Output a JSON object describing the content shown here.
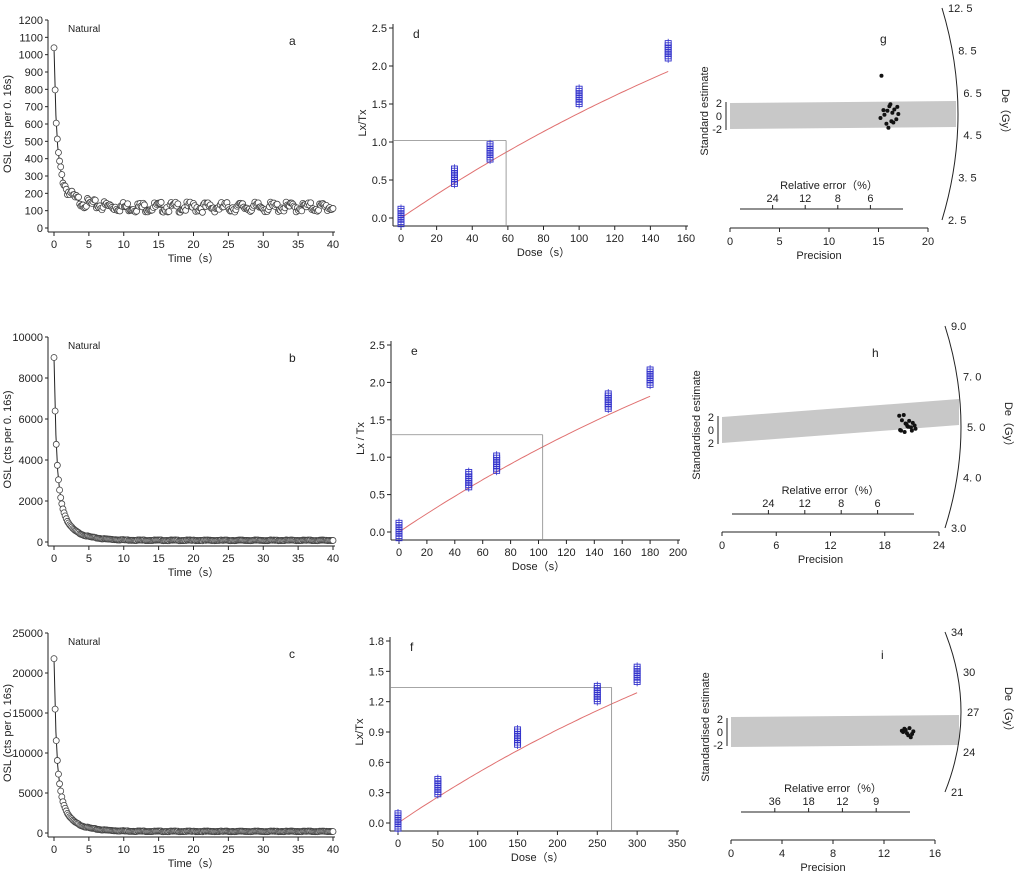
{
  "figure": {
    "rows": [
      {
        "osl": {
          "letter": "a",
          "label": "Natural",
          "xlabel": "Time（s）",
          "ylabel": "OSL (cts per 0. 16s)",
          "xlim": [
            0,
            40
          ],
          "ylim": [
            0,
            1200
          ],
          "xticks": [
            "0",
            "5",
            "10",
            "15",
            "20",
            "25",
            "30",
            "35",
            "40"
          ],
          "yticks": [
            "0",
            "100",
            "200",
            "300",
            "400",
            "500",
            "600",
            "700",
            "800",
            "900",
            "1000",
            "1100",
            "1200"
          ],
          "ytick_values": [
            0,
            100,
            200,
            300,
            400,
            500,
            600,
            700,
            800,
            900,
            1000,
            1100,
            1200
          ],
          "peak": 1040,
          "tail": 120
        },
        "growth": {
          "letter": "d",
          "xlabel": "Dose（s）",
          "ylabel": "Lx/Tx",
          "xlim": [
            0,
            160
          ],
          "ylim": [
            0,
            2.5
          ],
          "xticks": [
            "0",
            "20",
            "40",
            "60",
            "80",
            "100",
            "120",
            "140",
            "160"
          ],
          "xtick_values": [
            0,
            20,
            40,
            60,
            80,
            100,
            120,
            140,
            160
          ],
          "yticks": [
            "0.0",
            "0.5",
            "1.0",
            "1.5",
            "2.0",
            "2.5"
          ],
          "ytick_values": [
            0,
            0.5,
            1.0,
            1.5,
            2.0,
            2.5
          ],
          "points": [
            [
              0,
              0.02
            ],
            [
              30,
              0.55
            ],
            [
              50,
              0.87
            ],
            [
              100,
              1.6
            ],
            [
              150,
              2.2
            ]
          ],
          "natural": [
            59,
            1.02
          ]
        },
        "radial": {
          "letter": "g",
          "ylabel": "Standard estimate",
          "rel_error_label": "Relative error（%）",
          "rel_error_ticks": [
            "24",
            "12",
            "8",
            "6"
          ],
          "precision_label": "Precision",
          "precision_ticks": [
            "0",
            "5",
            "10",
            "15",
            "20"
          ],
          "precision_values": [
            0,
            5,
            10,
            15,
            20
          ],
          "precision_max": 20,
          "std_ticks": [
            "2",
            "0",
            "-2"
          ],
          "de_label": "De（Gy）",
          "de_ticks": [
            "12. 5",
            "8. 5",
            "6. 5",
            "4. 5",
            "3. 5",
            "2. 5"
          ]
        }
      },
      {
        "osl": {
          "letter": "b",
          "label": "Natural",
          "xlabel": "Time（s）",
          "ylabel": "OSL (cts per 0. 16s)",
          "xlim": [
            0,
            40
          ],
          "ylim": [
            0,
            10000
          ],
          "xticks": [
            "0",
            "5",
            "10",
            "15",
            "20",
            "25",
            "30",
            "35",
            "40"
          ],
          "yticks": [
            "0",
            "2000",
            "4000",
            "6000",
            "8000",
            "10000"
          ],
          "ytick_values": [
            0,
            2000,
            4000,
            6000,
            8000,
            10000
          ],
          "peak": 9000,
          "tail": 80
        },
        "growth": {
          "letter": "e",
          "xlabel": "Dose（s）",
          "ylabel": "Lx / Tx",
          "xlim": [
            0,
            200
          ],
          "ylim": [
            0,
            2.5
          ],
          "xticks": [
            "0",
            "20",
            "40",
            "60",
            "80",
            "100",
            "120",
            "140",
            "160",
            "180",
            "200"
          ],
          "xtick_values": [
            0,
            20,
            40,
            60,
            80,
            100,
            120,
            140,
            160,
            180,
            200
          ],
          "yticks": [
            "0.0",
            "0.5",
            "1.0",
            "1.5",
            "2.0",
            "2.5"
          ],
          "ytick_values": [
            0,
            0.5,
            1.0,
            1.5,
            2.0,
            2.5
          ],
          "points": [
            [
              0,
              0.02
            ],
            [
              50,
              0.7
            ],
            [
              70,
              0.92
            ],
            [
              150,
              1.75
            ],
            [
              180,
              2.07
            ]
          ],
          "natural": [
            103,
            1.3
          ]
        },
        "radial": {
          "letter": "h",
          "ylabel": "Standardised estimate",
          "rel_error_label": "Relative error（%）",
          "rel_error_ticks": [
            "24",
            "12",
            "8",
            "6"
          ],
          "precision_label": "Precision",
          "precision_ticks": [
            "0",
            "6",
            "12",
            "18",
            "24"
          ],
          "precision_values": [
            0,
            6,
            12,
            18,
            24
          ],
          "precision_max": 24,
          "std_ticks": [
            "2",
            "0",
            "2"
          ],
          "de_label": "De（Gy）",
          "de_ticks": [
            "9.0",
            "7. 0",
            "5. 0",
            "4. 0",
            "3.0"
          ]
        }
      },
      {
        "osl": {
          "letter": "c",
          "label": "Natural",
          "xlabel": "Time（s）",
          "ylabel": "OSL (cts per 0. 16s)",
          "xlim": [
            0,
            40
          ],
          "ylim": [
            0,
            25000
          ],
          "xticks": [
            "0",
            "5",
            "10",
            "15",
            "20",
            "25",
            "30",
            "35",
            "40"
          ],
          "yticks": [
            "0",
            "5000",
            "10000",
            "15000",
            "20000",
            "25000"
          ],
          "ytick_values": [
            0,
            5000,
            10000,
            15000,
            20000,
            25000
          ],
          "peak": 21800,
          "tail": 200
        },
        "growth": {
          "letter": "f",
          "xlabel": "Dose（s）",
          "ylabel": "Lx/Tx",
          "xlim": [
            0,
            350
          ],
          "ylim": [
            0,
            1.8
          ],
          "xticks": [
            "0",
            "50",
            "100",
            "150",
            "200",
            "250",
            "300",
            "350"
          ],
          "xtick_values": [
            0,
            50,
            100,
            150,
            200,
            250,
            300,
            350
          ],
          "yticks": [
            "0.0",
            "0.3",
            "0.6",
            "0.9",
            "1.2",
            "1.5",
            "1.8"
          ],
          "ytick_values": [
            0,
            0.3,
            0.6,
            0.9,
            1.2,
            1.5,
            1.8
          ],
          "points": [
            [
              0,
              0.02
            ],
            [
              50,
              0.36
            ],
            [
              150,
              0.85
            ],
            [
              250,
              1.28
            ],
            [
              300,
              1.47
            ]
          ],
          "natural": [
            268,
            1.34
          ]
        },
        "radial": {
          "letter": "i",
          "ylabel": "Standardised estimate",
          "rel_error_label": "Relative error（%）",
          "rel_error_ticks": [
            "36",
            "18",
            "12",
            "9"
          ],
          "precision_label": "Precision",
          "precision_ticks": [
            "0",
            "4",
            "8",
            "12",
            "16"
          ],
          "precision_values": [
            0,
            4,
            8,
            12,
            16
          ],
          "precision_max": 16,
          "std_ticks": [
            "2",
            "0",
            "-2"
          ],
          "de_label": "De（Gy）",
          "de_ticks": [
            "34",
            "30",
            "27",
            "24",
            "21"
          ]
        }
      }
    ]
  },
  "chart_data": [
    {
      "type": "line",
      "panel": "a",
      "label": "Natural",
      "x_range": [
        0,
        40
      ],
      "ylim": [
        0,
        1200
      ],
      "initial_counts": 1040,
      "background_counts": 120,
      "xlabel": "Time（s）",
      "ylabel": "OSL (cts per 0. 16s)"
    },
    {
      "type": "scatter",
      "panel": "d",
      "x": [
        0,
        30,
        50,
        100,
        150
      ],
      "y": [
        0.02,
        0.55,
        0.87,
        1.6,
        2.2
      ],
      "equivalent_dose": 59,
      "natural_lx_tx": 1.02,
      "xlabel": "Dose（s）",
      "ylabel": "Lx/Tx",
      "xlim": [
        0,
        160
      ],
      "ylim": [
        0,
        2.5
      ]
    },
    {
      "type": "scatter",
      "panel": "g",
      "precision": [
        15.2,
        15.6,
        15.9,
        16.1,
        16.3,
        16.4,
        16.6,
        16.8,
        17.0,
        15.8,
        16.2,
        16.5,
        16.9,
        15.5,
        16.0,
        15.3
      ],
      "standard_estimate": [
        -0.3,
        0.2,
        0.8,
        1.5,
        -0.8,
        0.5,
        1.0,
        -0.5,
        0.3,
        -1.2,
        1.8,
        -1.0,
        1.4,
        0.9,
        -1.8,
        6.2
      ],
      "xlabel": "Precision",
      "ylabel": "Standard estimate"
    },
    {
      "type": "line",
      "panel": "b",
      "label": "Natural",
      "x_range": [
        0,
        40
      ],
      "ylim": [
        0,
        10000
      ],
      "initial_counts": 9000,
      "background_counts": 80,
      "xlabel": "Time（s）",
      "ylabel": "OSL (cts per 0. 16s)"
    },
    {
      "type": "scatter",
      "panel": "e",
      "x": [
        0,
        50,
        70,
        150,
        180
      ],
      "y": [
        0.02,
        0.7,
        0.92,
        1.75,
        2.07
      ],
      "equivalent_dose": 103,
      "natural_lx_tx": 1.3,
      "xlabel": "Dose（s）",
      "ylabel": "Lx / Tx",
      "xlim": [
        0,
        200
      ],
      "ylim": [
        0,
        2.5
      ]
    },
    {
      "type": "scatter",
      "panel": "h",
      "precision": [
        19.6,
        19.9,
        20.1,
        20.3,
        20.5,
        20.7,
        20.9,
        21.1,
        21.4,
        19.8,
        20.2,
        20.6,
        21.0,
        20.4,
        19.7,
        21.3
      ],
      "standard_estimate": [
        2.2,
        1.5,
        2.3,
        1.0,
        0.6,
        1.4,
        0.4,
        1.1,
        0.2,
        -0.1,
        -0.3,
        0.5,
        -0.1,
        0.9,
        0.0,
        0.7
      ],
      "xlabel": "Precision",
      "ylabel": "Standardised estimate"
    },
    {
      "type": "line",
      "panel": "c",
      "label": "Natural",
      "x_range": [
        0,
        40
      ],
      "ylim": [
        0,
        25000
      ],
      "initial_counts": 21800,
      "background_counts": 200,
      "xlabel": "Time（s）",
      "ylabel": "OSL (cts per 0. 16s)"
    },
    {
      "type": "scatter",
      "panel": "f",
      "x": [
        0,
        50,
        150,
        250,
        300
      ],
      "y": [
        0.02,
        0.36,
        0.85,
        1.28,
        1.47
      ],
      "equivalent_dose": 268,
      "natural_lx_tx": 1.34,
      "xlabel": "Dose（s）",
      "ylabel": "Lx/Tx",
      "xlim": [
        0,
        350
      ],
      "ylim": [
        0,
        1.8
      ]
    },
    {
      "type": "scatter",
      "panel": "i",
      "precision": [
        13.4,
        13.6,
        13.8,
        14.0,
        14.1,
        14.3,
        13.9,
        13.7,
        14.2,
        13.5
      ],
      "standard_estimate": [
        0.2,
        0.5,
        -0.2,
        0.6,
        -0.8,
        0.1,
        -0.5,
        0.3,
        -0.3,
        0.0
      ],
      "xlabel": "Precision",
      "ylabel": "Standardised estimate"
    }
  ]
}
